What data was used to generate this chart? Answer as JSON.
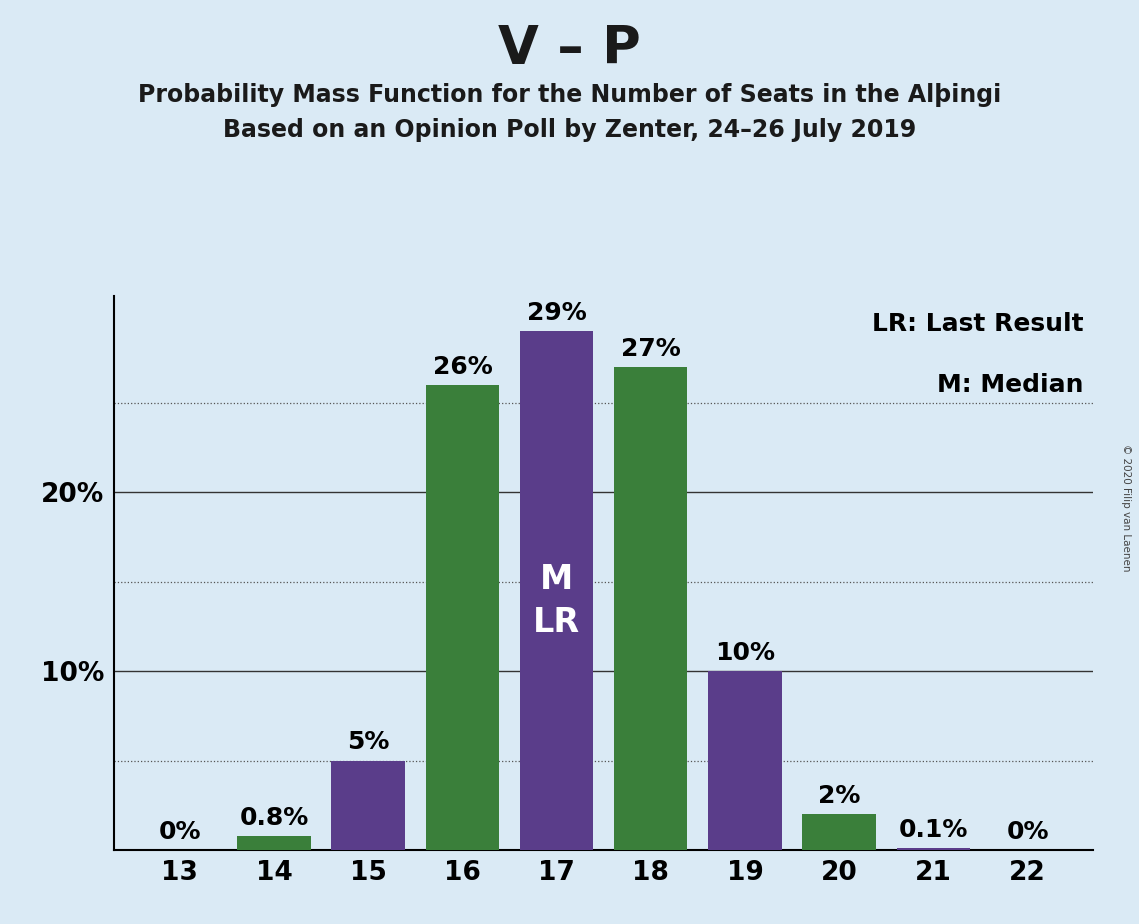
{
  "title": "V – P",
  "subtitle1": "Probability Mass Function for the Number of Seats in the Alþingi",
  "subtitle2": "Based on an Opinion Poll by Zenter, 24–26 July 2019",
  "copyright": "© 2020 Filip van Laenen",
  "seats": [
    13,
    14,
    15,
    16,
    17,
    18,
    19,
    20,
    21,
    22
  ],
  "values": [
    0.0,
    0.8,
    5.0,
    26.0,
    29.0,
    27.0,
    10.0,
    2.0,
    0.1,
    0.0
  ],
  "labels": [
    "0%",
    "0.8%",
    "5%",
    "26%",
    "29%",
    "27%",
    "10%",
    "2%",
    "0.1%",
    "0%"
  ],
  "background_color": "#daeaf5",
  "median_bar_seat": 17,
  "ylim": [
    0,
    31
  ],
  "solid_gridlines": [
    10,
    20
  ],
  "dotted_gridlines": [
    5,
    15,
    25
  ],
  "ytick_positions": [
    10,
    20
  ],
  "ytick_labels": [
    "10%",
    "20%"
  ],
  "legend_lr": "LR: Last Result",
  "legend_m": "M: Median",
  "title_fontsize": 38,
  "subtitle_fontsize": 17,
  "bar_label_fontsize": 18,
  "axis_label_fontsize": 19,
  "legend_fontsize": 18,
  "green_color": "#3a7f3a",
  "purple_color": "#5a3d8a",
  "bar_width": 0.78
}
